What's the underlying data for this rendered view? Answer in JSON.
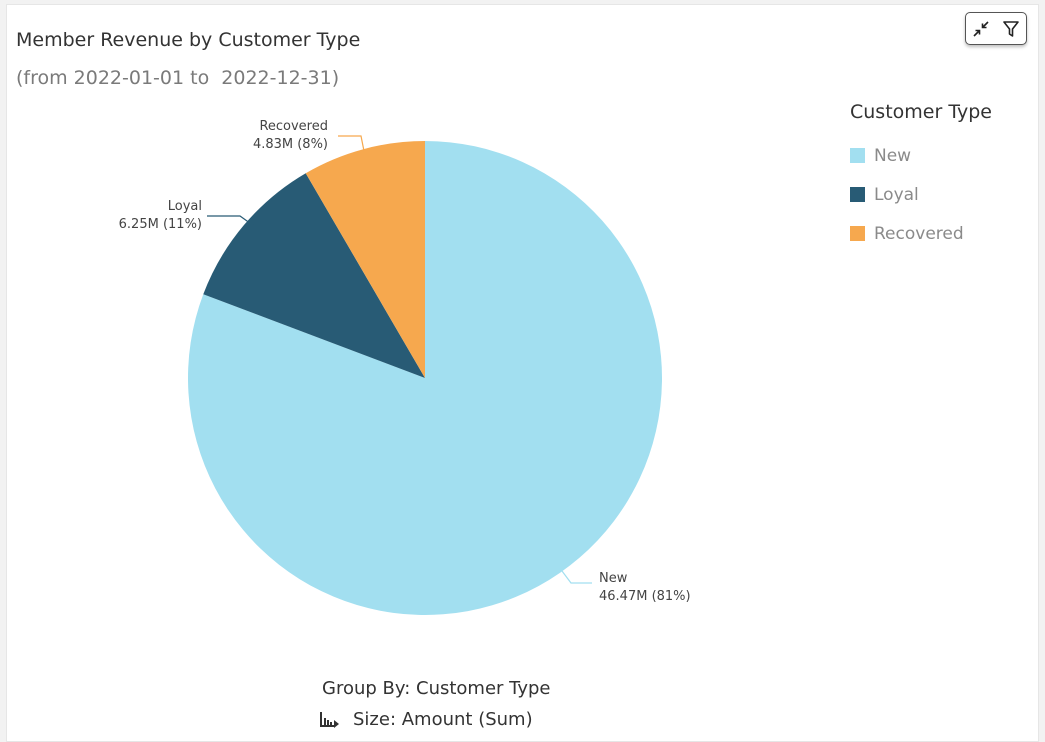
{
  "header": {
    "title": "Member Revenue by Customer Type",
    "subtitle": "(from 2022-01-01 to  2022-12-31)"
  },
  "toolbar": {
    "collapse_icon": "collapse-icon",
    "filter_icon": "filter-icon"
  },
  "chart_data": {
    "type": "pie",
    "title": "Member Revenue by Customer Type",
    "subtitle": "(from 2022-01-01 to  2022-12-31)",
    "categories": [
      "New",
      "Loyal",
      "Recovered"
    ],
    "values": [
      46.47,
      6.25,
      4.83
    ],
    "value_labels": [
      "46.47M",
      "6.25M",
      "4.83M"
    ],
    "percent_labels": [
      "(81%)",
      "(11%)",
      "(8%)"
    ],
    "colors": [
      "#a2dff0",
      "#285b75",
      "#f6a84e"
    ],
    "legend": {
      "title": "Customer Type",
      "position": "right",
      "entries": [
        "New",
        "Loyal",
        "Recovered"
      ]
    }
  },
  "footer": {
    "group_by": "Group By: Customer Type",
    "size": "Size: Amount (Sum)",
    "size_icon": "bar-chart-sort-icon"
  }
}
